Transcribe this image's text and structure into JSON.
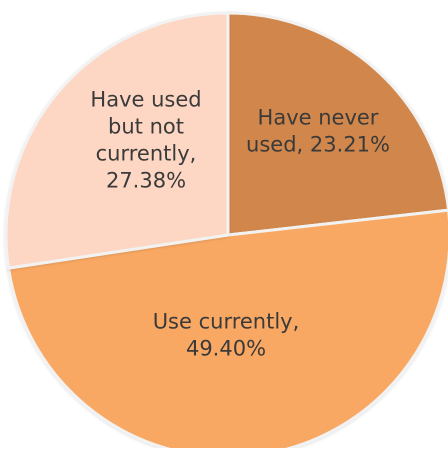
{
  "chart_data": {
    "type": "pie",
    "title": "",
    "slices": [
      {
        "name": "Have never used",
        "value": 23.21,
        "label_lines": [
          "Have never",
          "used, 23.21%"
        ],
        "color": "#d1874b"
      },
      {
        "name": "Use currently",
        "value": 49.4,
        "label_lines": [
          "Use currently,",
          "49.40%"
        ],
        "color": "#f9a863"
      },
      {
        "name": "Have used but not currently",
        "value": 27.38,
        "label_lines": [
          "Have used",
          "but not",
          "currently,",
          "27.38%"
        ],
        "color": "#fdd7c3"
      }
    ],
    "start_angle": "12 o'clock",
    "direction": "clockwise"
  },
  "colors": {
    "border": "#f2f2f2",
    "text": "#3a3a3a"
  }
}
